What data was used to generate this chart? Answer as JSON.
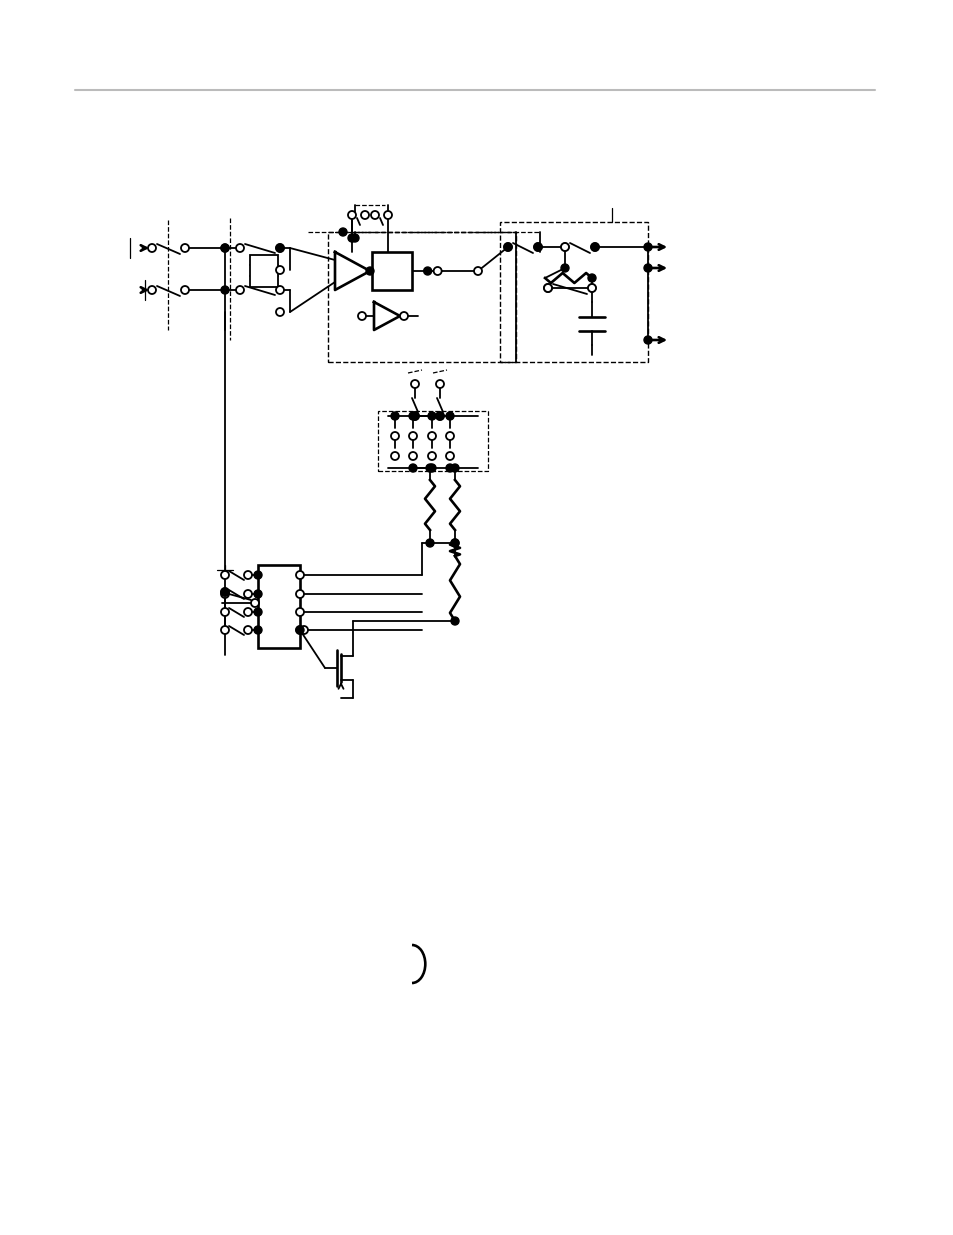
{
  "bg_color": "#ffffff",
  "lc": "#000000",
  "fig_width": 9.54,
  "fig_height": 12.35,
  "dpi": 100
}
